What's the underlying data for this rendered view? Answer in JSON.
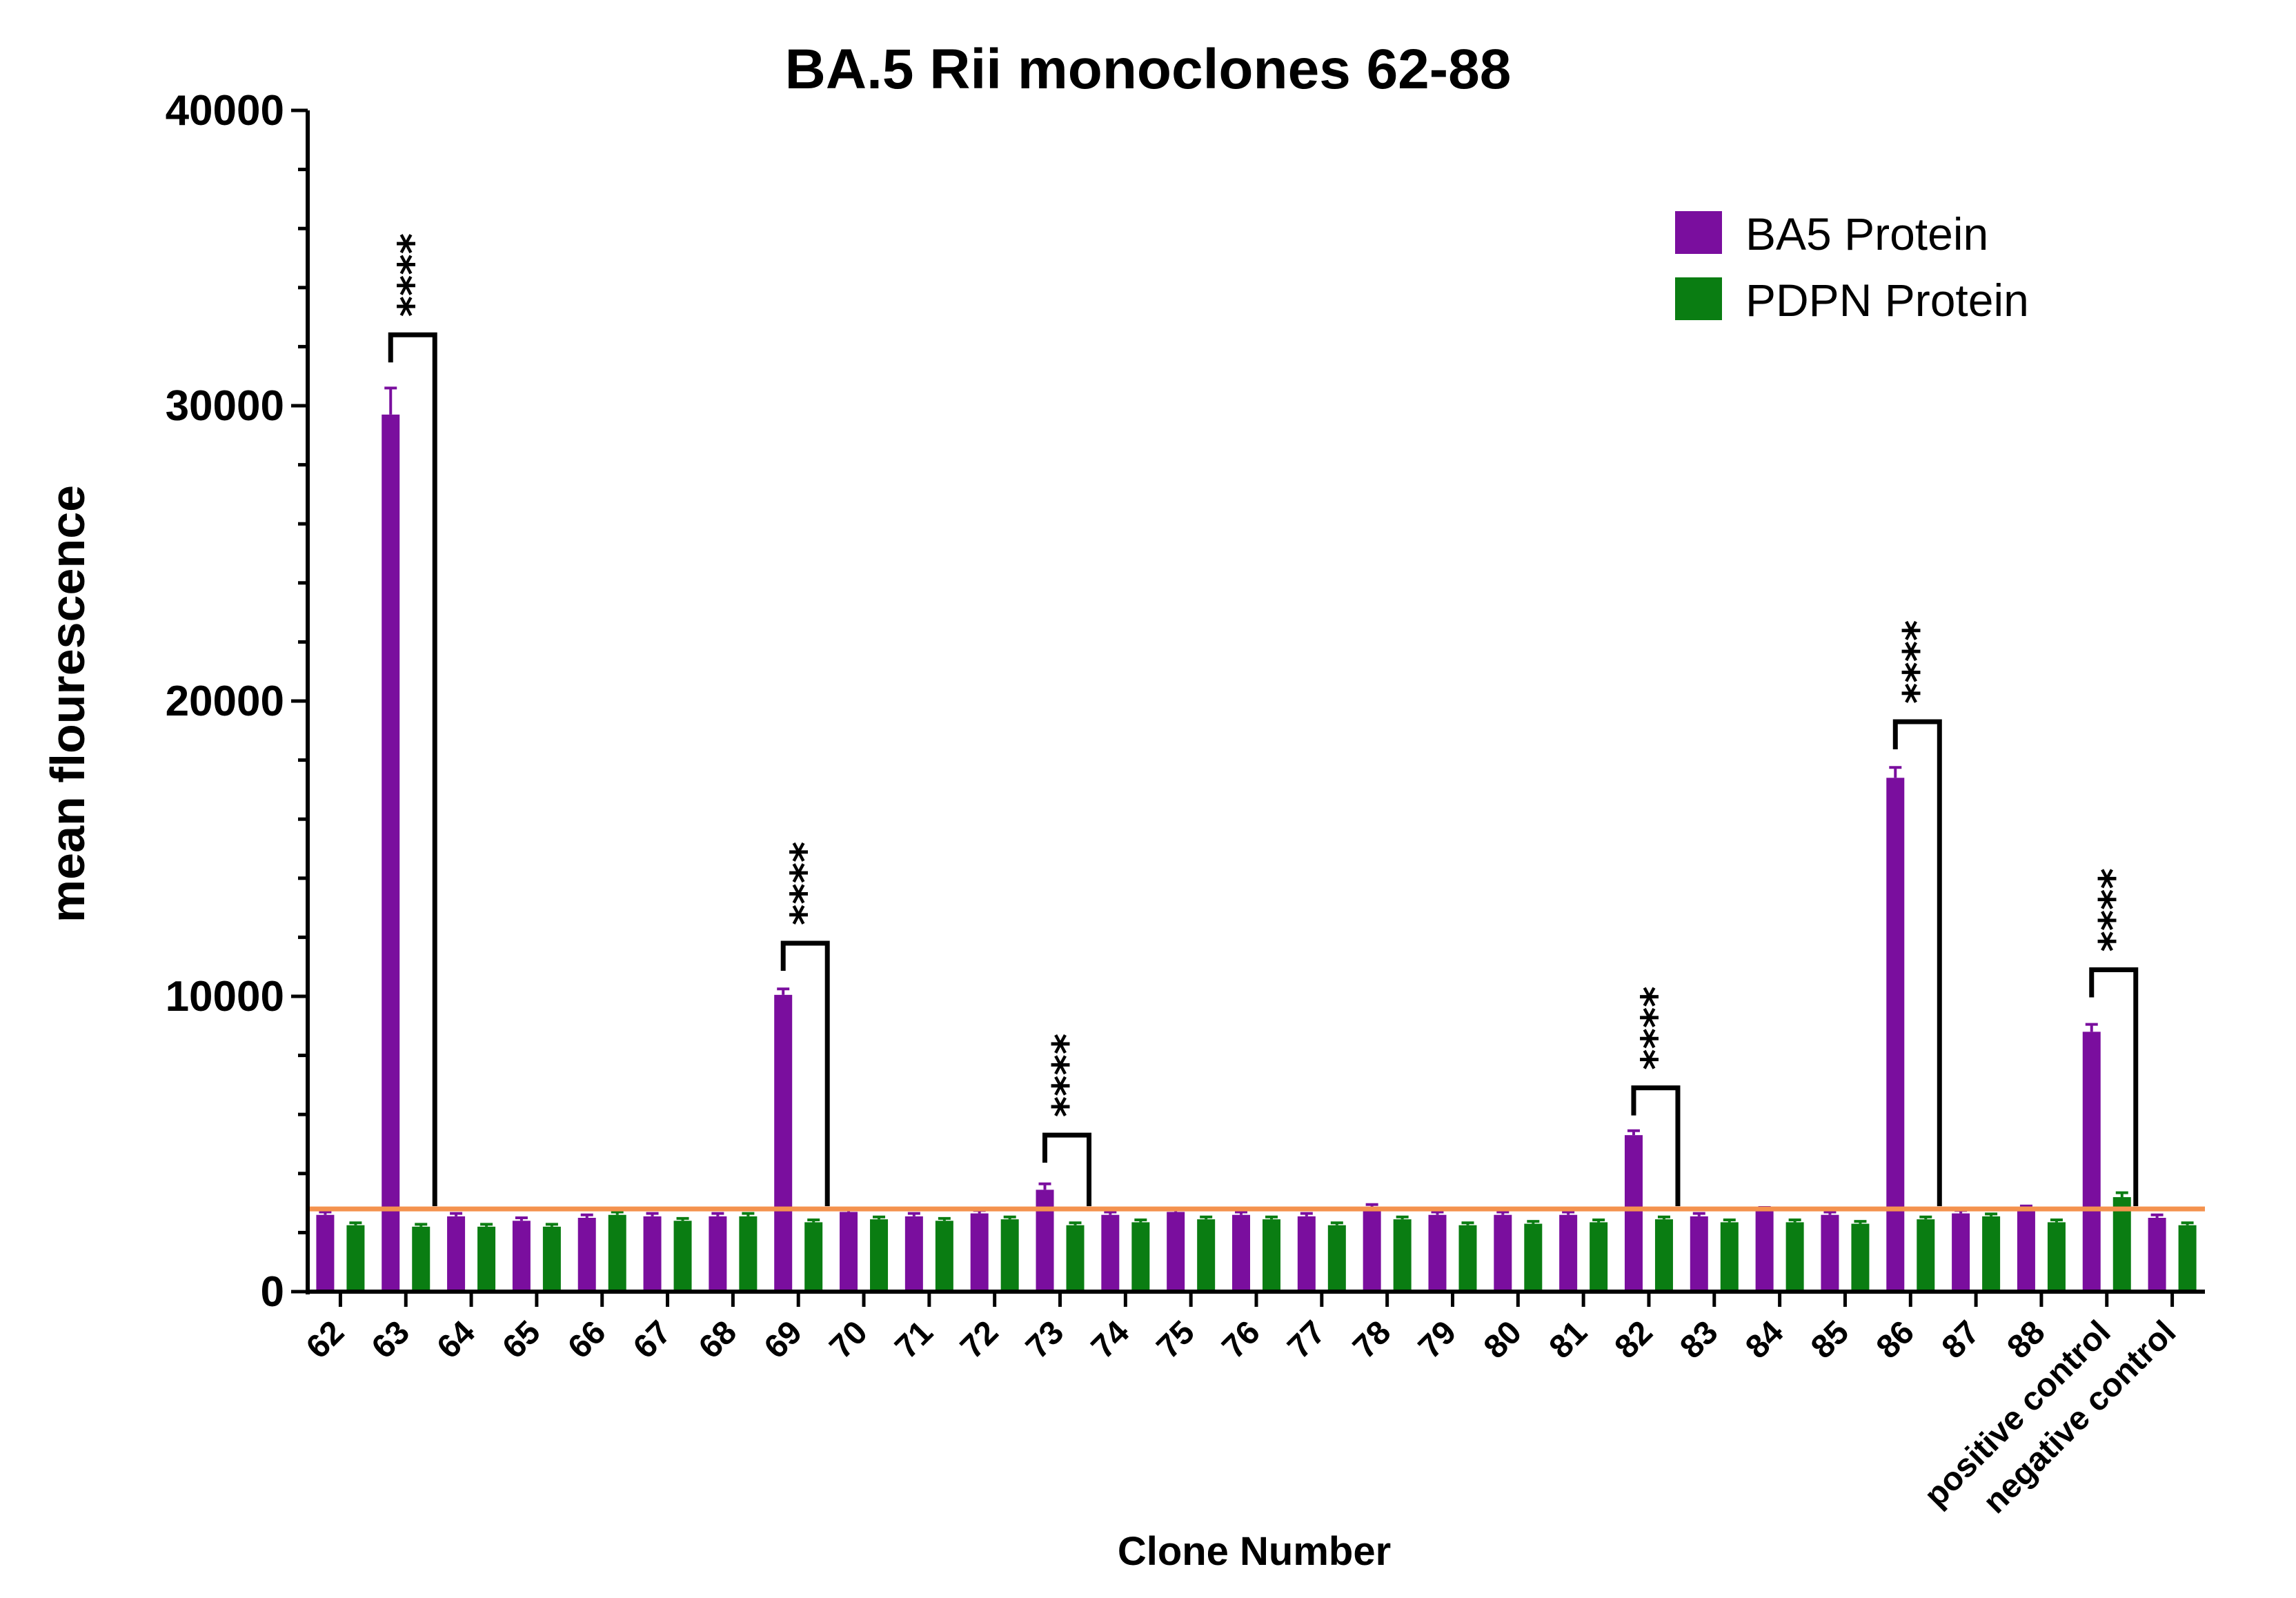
{
  "chart_data": {
    "type": "bar",
    "title": "BA.5  Rii monoclones 62-88",
    "xlabel": "Clone Number",
    "ylabel": "mean flourescence",
    "ylim": [
      0,
      40000
    ],
    "yticks": [
      "0",
      "10000",
      "20000",
      "30000",
      "40000"
    ],
    "categories": [
      "62",
      "63",
      "64",
      "65",
      "66",
      "67",
      "68",
      "69",
      "70",
      "71",
      "72",
      "73",
      "74",
      "75",
      "76",
      "77",
      "78",
      "79",
      "80",
      "81",
      "82",
      "83",
      "84",
      "85",
      "86",
      "87",
      "88",
      "positive control",
      "negative control"
    ],
    "series": [
      {
        "name": "BA5 Protein",
        "color": "#7a0e9e",
        "values": [
          2600,
          29700,
          2550,
          2400,
          2500,
          2550,
          2550,
          10050,
          2700,
          2550,
          2650,
          3450,
          2600,
          2700,
          2600,
          2550,
          2850,
          2600,
          2600,
          2600,
          5300,
          2550,
          2750,
          2600,
          17400,
          2650,
          2800,
          8800,
          2500
        ],
        "errors": [
          100,
          900,
          100,
          100,
          100,
          100,
          100,
          200,
          100,
          100,
          100,
          200,
          100,
          100,
          100,
          100,
          100,
          100,
          100,
          100,
          150,
          100,
          100,
          100,
          350,
          100,
          100,
          250,
          100
        ]
      },
      {
        "name": "PDPN Protein",
        "color": "#0a7d12",
        "values": [
          2250,
          2200,
          2200,
          2200,
          2600,
          2400,
          2550,
          2350,
          2450,
          2400,
          2450,
          2250,
          2350,
          2450,
          2450,
          2250,
          2450,
          2250,
          2300,
          2350,
          2450,
          2350,
          2350,
          2300,
          2450,
          2550,
          2350,
          3200,
          2250
        ],
        "errors": [
          80,
          80,
          80,
          80,
          100,
          80,
          100,
          80,
          80,
          80,
          80,
          80,
          80,
          80,
          80,
          80,
          80,
          80,
          80,
          80,
          80,
          80,
          80,
          80,
          80,
          80,
          80,
          150,
          80
        ]
      }
    ],
    "threshold": {
      "value": 2800,
      "color": "#f4924e"
    },
    "significance": [
      {
        "category_index": 1,
        "label": "****",
        "y": 32400
      },
      {
        "category_index": 7,
        "label": "****",
        "y": 11800
      },
      {
        "category_index": 11,
        "label": "****",
        "y": 5300
      },
      {
        "category_index": 20,
        "label": "****",
        "y": 6900
      },
      {
        "category_index": 24,
        "label": "****",
        "y": 19300
      },
      {
        "category_index": 27,
        "label": "****",
        "y": 10900
      }
    ],
    "legend_position": "top-right",
    "grid": false
  }
}
